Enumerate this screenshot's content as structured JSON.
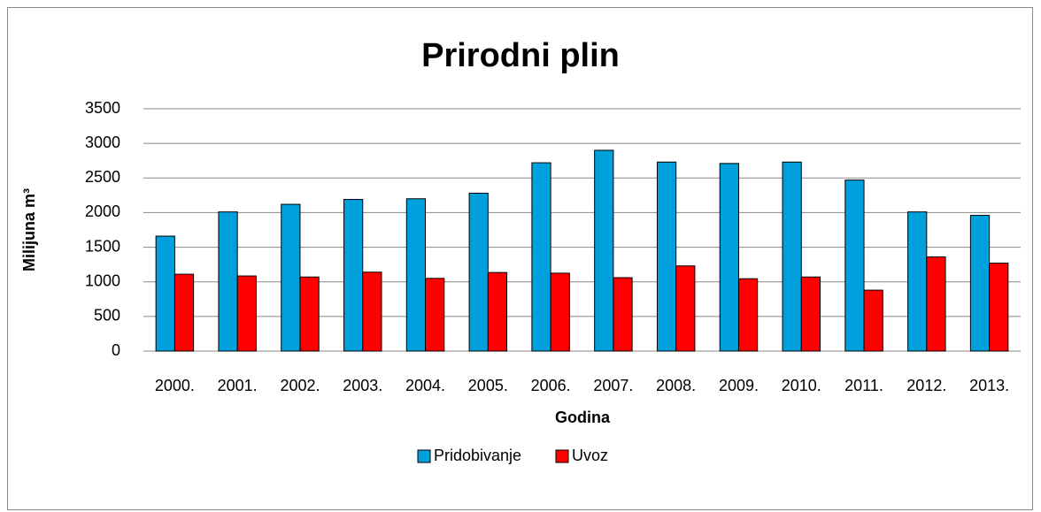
{
  "chart_data": {
    "type": "bar",
    "title": "Prirodni plin",
    "x_label": "Godina",
    "y_label": "Milijuna m³",
    "categories": [
      "2000.",
      "2001.",
      "2002.",
      "2003.",
      "2004.",
      "2005.",
      "2006.",
      "2007.",
      "2008.",
      "2009.",
      "2010.",
      "2011.",
      "2012.",
      "2013."
    ],
    "series": [
      {
        "name": "Pridobivanje",
        "color": "#00a0dc",
        "values": [
          1660,
          2010,
          2120,
          2190,
          2200,
          2280,
          2720,
          2900,
          2730,
          2710,
          2730,
          2470,
          2010,
          1960
        ]
      },
      {
        "name": "Uvoz",
        "color": "#ff0000",
        "values": [
          1110,
          1085,
          1070,
          1140,
          1050,
          1135,
          1125,
          1060,
          1230,
          1045,
          1070,
          880,
          1360,
          1270
        ]
      }
    ],
    "ylim": [
      0,
      3500
    ],
    "yticks": [
      0,
      500,
      1000,
      1500,
      2000,
      2500,
      3000,
      3500
    ],
    "grid": true,
    "legend": "bottom"
  }
}
